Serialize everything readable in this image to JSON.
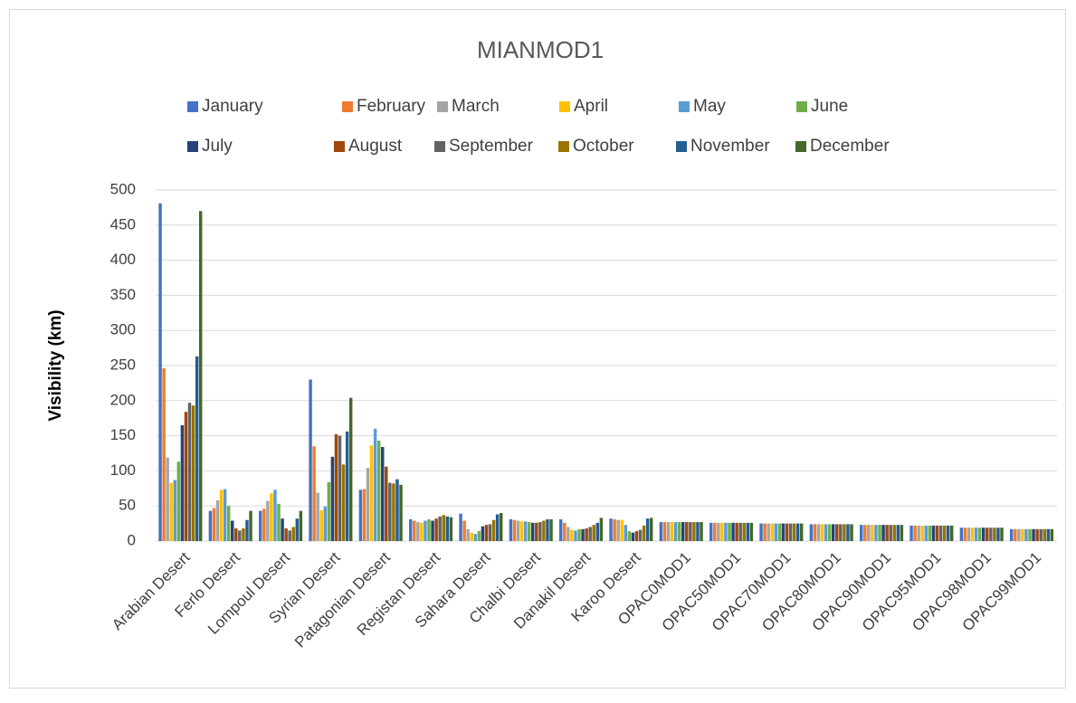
{
  "chart_data": {
    "type": "bar",
    "title": "MIANMOD1",
    "y_label": "Visibility (km)",
    "categories": [
      "Arabian Desert",
      "Ferlo Desert",
      "Lompoul Desert",
      "Syrian Desert",
      "Patagonian Desert",
      "Registan Desert",
      "Sahara Desert",
      "Chalbi Desert",
      "Danakil Desert",
      "Karoo Desert",
      "OPAC0MOD1",
      "OPAC50MOD1",
      "OPAC70MOD1",
      "OPAC80MOD1",
      "OPAC90MOD1",
      "OPAC95MOD1",
      "OPAC98MOD1",
      "OPAC99MOD1"
    ],
    "series": [
      {
        "name": "January",
        "color": "#4472c4",
        "values": [
          481,
          43,
          43,
          230,
          73,
          31,
          39,
          31,
          31,
          32,
          27,
          26,
          25,
          24,
          23,
          22,
          19,
          17
        ]
      },
      {
        "name": "February",
        "color": "#ed7d31",
        "values": [
          246,
          47,
          46,
          135,
          74,
          29,
          29,
          30,
          26,
          31,
          27,
          26,
          25,
          24,
          23,
          22,
          19,
          17
        ]
      },
      {
        "name": "March",
        "color": "#a5a5a5",
        "values": [
          119,
          58,
          57,
          69,
          104,
          27,
          17,
          29,
          20,
          30,
          27,
          26,
          25,
          24,
          23,
          22,
          19,
          17
        ]
      },
      {
        "name": "April",
        "color": "#ffc000",
        "values": [
          83,
          73,
          68,
          44,
          136,
          26,
          12,
          28,
          16,
          30,
          27,
          26,
          25,
          24,
          23,
          22,
          19,
          17
        ]
      },
      {
        "name": "May",
        "color": "#5b9bd5",
        "values": [
          87,
          74,
          73,
          49,
          160,
          29,
          10,
          28,
          15,
          23,
          27,
          26,
          25,
          24,
          23,
          22,
          19,
          17
        ]
      },
      {
        "name": "June",
        "color": "#70ad47",
        "values": [
          113,
          50,
          53,
          84,
          143,
          31,
          14,
          27,
          17,
          14,
          27,
          26,
          25,
          24,
          23,
          22,
          19,
          17
        ]
      },
      {
        "name": "July",
        "color": "#264478",
        "values": [
          165,
          29,
          32,
          120,
          134,
          29,
          21,
          26,
          17,
          12,
          27,
          26,
          25,
          24,
          23,
          22,
          19,
          17
        ]
      },
      {
        "name": "August",
        "color": "#9e480e",
        "values": [
          184,
          18,
          18,
          152,
          106,
          32,
          23,
          26,
          18,
          14,
          27,
          26,
          25,
          24,
          23,
          22,
          19,
          17
        ]
      },
      {
        "name": "September",
        "color": "#636363",
        "values": [
          197,
          15,
          15,
          150,
          83,
          35,
          24,
          27,
          20,
          16,
          27,
          26,
          25,
          24,
          23,
          22,
          19,
          17
        ]
      },
      {
        "name": "October",
        "color": "#997300",
        "values": [
          193,
          18,
          20,
          109,
          82,
          37,
          30,
          29,
          23,
          22,
          27,
          26,
          25,
          24,
          23,
          22,
          19,
          17
        ]
      },
      {
        "name": "November",
        "color": "#255e91",
        "values": [
          263,
          30,
          32,
          156,
          88,
          35,
          38,
          31,
          26,
          32,
          27,
          26,
          25,
          24,
          23,
          22,
          19,
          17
        ]
      },
      {
        "name": "December",
        "color": "#43682b",
        "values": [
          470,
          43,
          43,
          204,
          80,
          34,
          40,
          31,
          33,
          33,
          27,
          26,
          25,
          24,
          23,
          22,
          19,
          17
        ]
      }
    ],
    "ylim": [
      0,
      500
    ],
    "yticks": [
      0,
      50,
      100,
      150,
      200,
      250,
      300,
      350,
      400,
      450,
      500
    ],
    "grid": true
  }
}
